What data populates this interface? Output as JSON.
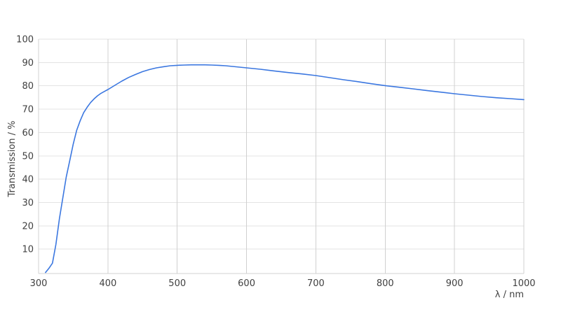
{
  "chart_data": {
    "type": "line",
    "title": "",
    "xlabel": "λ / nm",
    "ylabel": "Transmission / %",
    "xlim": [
      300,
      1000
    ],
    "ylim": [
      0,
      100
    ],
    "x_ticks": [
      300,
      400,
      500,
      600,
      700,
      800,
      900,
      1000
    ],
    "y_ticks": [
      10,
      20,
      30,
      40,
      50,
      60,
      70,
      80,
      90,
      100
    ],
    "grid": "on",
    "legend": "none",
    "series": [
      {
        "name": "Transmission",
        "color": "#3b77e0",
        "points": [
          [
            310,
            0
          ],
          [
            315,
            1.8
          ],
          [
            320,
            4
          ],
          [
            325,
            12
          ],
          [
            330,
            23
          ],
          [
            335,
            32
          ],
          [
            340,
            41
          ],
          [
            345,
            48
          ],
          [
            350,
            55
          ],
          [
            355,
            61
          ],
          [
            360,
            65
          ],
          [
            365,
            68.5
          ],
          [
            370,
            70.8
          ],
          [
            375,
            72.8
          ],
          [
            380,
            74.4
          ],
          [
            385,
            75.7
          ],
          [
            390,
            76.8
          ],
          [
            395,
            77.6
          ],
          [
            400,
            78.4
          ],
          [
            410,
            80.2
          ],
          [
            420,
            82
          ],
          [
            430,
            83.6
          ],
          [
            440,
            84.9
          ],
          [
            450,
            86.1
          ],
          [
            460,
            87
          ],
          [
            470,
            87.7
          ],
          [
            480,
            88.2
          ],
          [
            490,
            88.6
          ],
          [
            500,
            88.8
          ],
          [
            510,
            88.9
          ],
          [
            520,
            89
          ],
          [
            530,
            89
          ],
          [
            540,
            89
          ],
          [
            550,
            88.9
          ],
          [
            560,
            88.8
          ],
          [
            570,
            88.6
          ],
          [
            580,
            88.3
          ],
          [
            590,
            88
          ],
          [
            600,
            87.7
          ],
          [
            620,
            87.1
          ],
          [
            640,
            86.4
          ],
          [
            660,
            85.7
          ],
          [
            680,
            85.1
          ],
          [
            700,
            84.4
          ],
          [
            720,
            83.5
          ],
          [
            740,
            82.6
          ],
          [
            760,
            81.8
          ],
          [
            780,
            80.9
          ],
          [
            800,
            80.1
          ],
          [
            820,
            79.4
          ],
          [
            840,
            78.7
          ],
          [
            860,
            78
          ],
          [
            880,
            77.3
          ],
          [
            900,
            76.6
          ],
          [
            920,
            76
          ],
          [
            940,
            75.4
          ],
          [
            960,
            74.9
          ],
          [
            980,
            74.5
          ],
          [
            1000,
            74.1
          ]
        ]
      }
    ],
    "colors": {
      "background": "#ffffff",
      "vertical_grid": "#d0d0d0",
      "horizontal_grid": "#e3e3e3",
      "axis_line": "#d0d0d0",
      "tick_label": "#404040",
      "axis_title": "#404040",
      "line": "#3b77e0"
    }
  }
}
